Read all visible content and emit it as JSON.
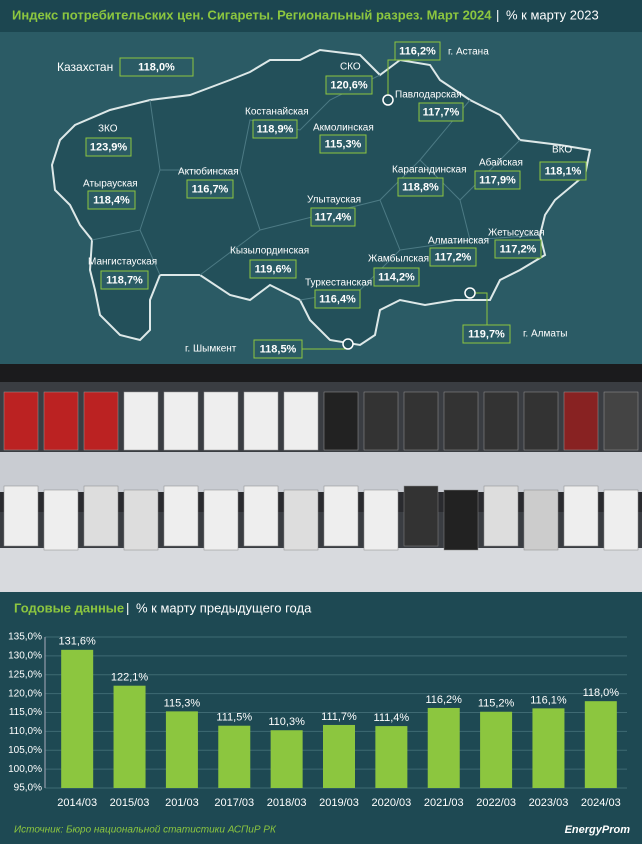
{
  "header": {
    "title": "Индекс потребительских цен. Сигареты. Региональный разрез. Март 2024",
    "subtitle": "% к марту 2023"
  },
  "map": {
    "regions": [
      {
        "name": "Казахстан",
        "value": "118,0%"
      },
      {
        "name": "СКО",
        "value": "120,6%"
      },
      {
        "name": "г. Астана",
        "value": "116,2%"
      },
      {
        "name": "Павлодарская",
        "value": "117,7%"
      },
      {
        "name": "Костанайская",
        "value": "118,9%"
      },
      {
        "name": "Акмолинская",
        "value": "115,3%"
      },
      {
        "name": "ЗКО",
        "value": "123,9%"
      },
      {
        "name": "Абайская",
        "value": "117,9%"
      },
      {
        "name": "ВКО",
        "value": "118,1%"
      },
      {
        "name": "Актюбинская",
        "value": "116,7%"
      },
      {
        "name": "Карагандинская",
        "value": "118,8%"
      },
      {
        "name": "Атырауская",
        "value": "118,4%"
      },
      {
        "name": "Улытауская",
        "value": "117,4%"
      },
      {
        "name": "Алматинская",
        "value": "117,2%"
      },
      {
        "name": "Жетысуская",
        "value": "117,2%"
      },
      {
        "name": "Кызылординская",
        "value": "119,6%"
      },
      {
        "name": "Жамбылская",
        "value": "114,2%"
      },
      {
        "name": "Мангистауская",
        "value": "118,7%"
      },
      {
        "name": "Туркестанская",
        "value": "116,4%"
      },
      {
        "name": "г. Шымкент",
        "value": "118,5%"
      },
      {
        "name": "г. Алматы",
        "value": "119,7%"
      }
    ]
  },
  "chart_data": {
    "type": "bar",
    "title": "Годовые данные",
    "subtitle": "% к марту предыдущего года",
    "categories": [
      "2014/03",
      "2015/03",
      "201/03",
      "2017/03",
      "2018/03",
      "2019/03",
      "2020/03",
      "2021/03",
      "2022/03",
      "2023/03",
      "2024/03"
    ],
    "values": [
      131.6,
      122.1,
      115.3,
      111.5,
      110.3,
      111.7,
      111.4,
      116.2,
      115.2,
      116.1,
      118.0
    ],
    "value_labels": [
      "131,6%",
      "122,1%",
      "115,3%",
      "111,5%",
      "110,3%",
      "111,7%",
      "111,4%",
      "116,2%",
      "115,2%",
      "116,1%",
      "118,0%"
    ],
    "color": "#8cc63f",
    "ylim": [
      95,
      135
    ],
    "yticks": [
      {
        "value": 95,
        "label": "95,0%"
      },
      {
        "value": 100,
        "label": "100,0%"
      },
      {
        "value": 105,
        "label": "105,0%"
      },
      {
        "value": 110,
        "label": "110,0%"
      },
      {
        "value": 115,
        "label": "115,0%"
      },
      {
        "value": 120,
        "label": "120,0%"
      },
      {
        "value": 125,
        "label": "125,0%"
      },
      {
        "value": 130,
        "label": "130,0%"
      },
      {
        "value": 135,
        "label": "135,0%"
      }
    ],
    "grid": true
  },
  "footer": {
    "source": "Источник: Бюро национальной статистики АСПиР РК",
    "brand": "EnergyProm"
  }
}
